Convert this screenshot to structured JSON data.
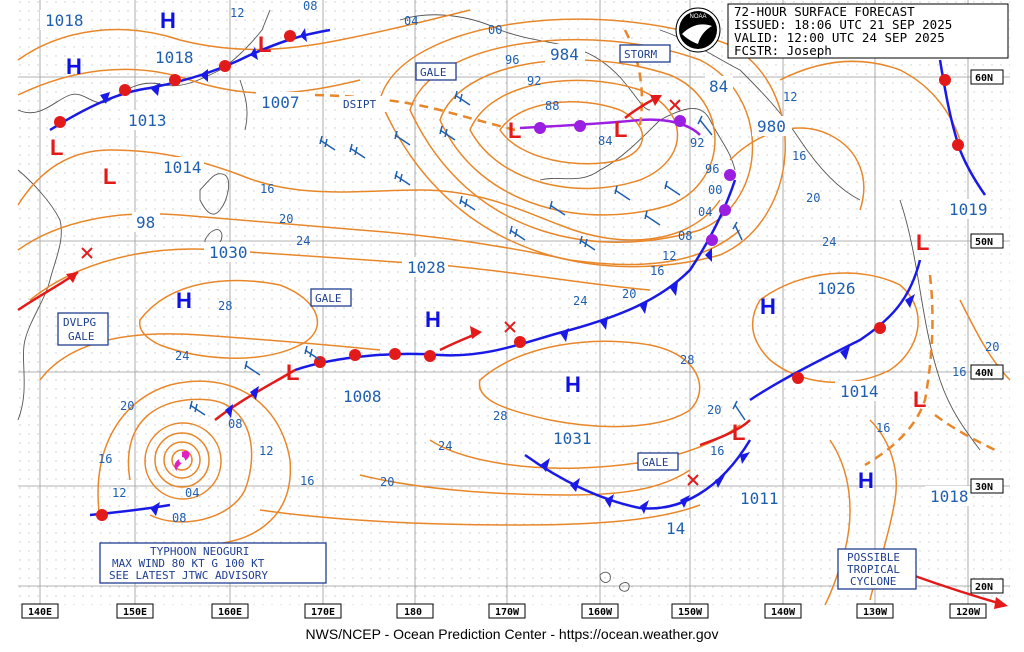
{
  "header": {
    "line1": "72-HOUR SURFACE FORECAST",
    "line2": "ISSUED: 18:06 UTC 21 SEP 2025",
    "line3": "VALID:  12:00 UTC 24 SEP 2025",
    "line4": "FCSTR:  Joseph"
  },
  "footer": "NWS/NCEP - Ocean Prediction Center - https://ocean.weather.gov",
  "axis_bottom": [
    "140E",
    "150E",
    "160E",
    "170E",
    "180",
    "170W",
    "160W",
    "150W",
    "140W",
    "130W",
    "120W"
  ],
  "axis_right": [
    "60N",
    "50N",
    "40N",
    "30N",
    "20N"
  ],
  "pressure_labels": [
    "1018",
    "1018",
    "1013",
    "1014",
    "98",
    "1030",
    "1007",
    "1028",
    "1008",
    "984",
    "980",
    "1026",
    "1019",
    "1014",
    "1031",
    "1011",
    "1018",
    "14",
    "84"
  ],
  "isobar_labels": [
    "12",
    "08",
    "04",
    "00",
    "96",
    "92",
    "88",
    "84",
    "92",
    "96",
    "00",
    "04",
    "08",
    "12",
    "16",
    "20",
    "24",
    "28",
    "24",
    "20",
    "16",
    "12",
    "08",
    "04",
    "08",
    "12",
    "16",
    "20",
    "24",
    "28",
    "16",
    "20",
    "24",
    "28",
    "20",
    "16",
    "20",
    "24",
    "16",
    "20",
    "12",
    "16",
    "20",
    "16"
  ],
  "centers": {
    "H": [
      "H",
      "H",
      "H",
      "H",
      "H",
      "H",
      "H",
      "H"
    ],
    "L": [
      "L",
      "L",
      "L",
      "L",
      "L",
      "L",
      "L",
      "L",
      "L"
    ]
  },
  "boxes": {
    "gale1": "GALE",
    "gale2": "GALE",
    "gale3": "GALE",
    "storm": "STORM",
    "dvlpg1": "DVLPG",
    "dvlpg2": "GALE",
    "dsipt": "DSIPT",
    "typhoon1": "TYPHOON NEOGURI",
    "typhoon2": "MAX WIND 80 KT G 100 KT",
    "typhoon3": "SEE LATEST JTWC ADVISORY",
    "possible1": "POSSIBLE",
    "possible2": "TROPICAL",
    "possible3": "CYCLONE"
  },
  "colors": {
    "isobar": "#e8872a",
    "cold_front": "#1a1ae6",
    "warm_front": "#e31a1a",
    "occluded": "#9b1fe0",
    "label": "#1f5fb0"
  },
  "logo": "NOAA"
}
